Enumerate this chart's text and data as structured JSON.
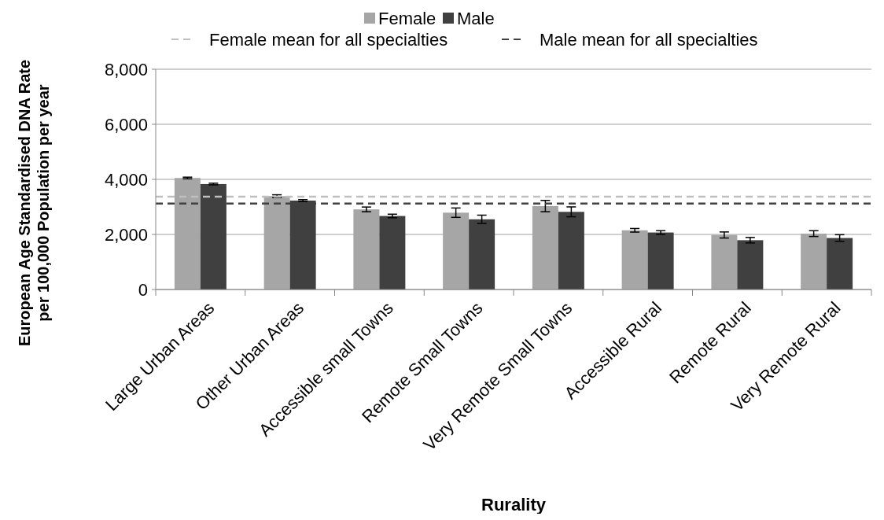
{
  "chart_data": {
    "type": "bar",
    "xlabel": "Rurality",
    "ylabel": "European Age Standardised DNA Rate\nper 100,000 Population per year",
    "categories": [
      "Large Urban Areas",
      "Other Urban Areas",
      "Accessible small Towns",
      "Remote Small Towns",
      "Very Remote Small Towns",
      "Accessible Rural",
      "Remote Rural",
      "Very Remote Rural"
    ],
    "series": [
      {
        "name": "Female",
        "color": "#a6a6a6",
        "values": [
          4050,
          3390,
          2910,
          2790,
          3030,
          2150,
          1980,
          2030
        ],
        "errors": [
          30,
          50,
          85,
          170,
          205,
          65,
          110,
          105
        ]
      },
      {
        "name": "Male",
        "color": "#404040",
        "values": [
          3830,
          3230,
          2670,
          2550,
          2820,
          2070,
          1790,
          1870
        ],
        "errors": [
          30,
          35,
          65,
          150,
          180,
          65,
          100,
          120
        ]
      }
    ],
    "ylim": [
      0,
      8000
    ],
    "yticks": [
      {
        "value": 0,
        "label": "0"
      },
      {
        "value": 2000,
        "label": "2,000"
      },
      {
        "value": 4000,
        "label": "4,000"
      },
      {
        "value": 6000,
        "label": "6,000"
      },
      {
        "value": 8000,
        "label": "8,000"
      }
    ],
    "grid": "y",
    "legend": "top",
    "ref_lines": [
      {
        "axis": "y",
        "value": 3370,
        "label": "Female mean for all specialties",
        "color": "#bfbfbf",
        "line_style": "dashed"
      },
      {
        "axis": "y",
        "value": 3120,
        "label": "Male mean for all specialties",
        "color": "#404040",
        "line_style": "dashed"
      }
    ]
  }
}
